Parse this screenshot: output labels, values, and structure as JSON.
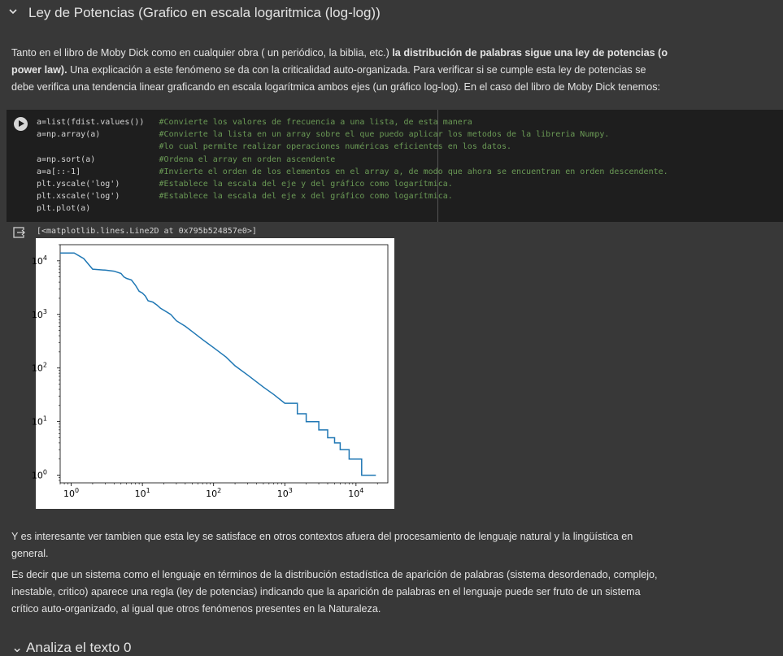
{
  "header": {
    "title": "Ley de Potencias (Grafico en escala logaritmica (log-log))",
    "chevron_icon": "chevron-down-icon"
  },
  "intro": {
    "part1": "Tanto en el libro de Moby Dick como en cualquier obra ( un periódico, la biblia, etc.) ",
    "bold": "la distribución de palabras sigue una ley de potencias (o power law).",
    "part2": " Una explicación a este fenómeno se da con la criticalidad auto-organizada. Para verificar si se cumple esta ley de potencias se debe verifica una tendencia linear graficando en escala logarítmica ambos ejes (un gráfico log-log). En el caso del libro de Moby Dick tenemos:"
  },
  "code_cell": {
    "run_icon": "play-icon",
    "lines": [
      {
        "code": "a=list(fdist.values())",
        "comment": "#Convierte los valores de frecuencia a una lista, de esta manera"
      },
      {
        "code": "a=np.array(a)",
        "comment": "#Convierte la lista en un array sobre el que puedo aplicar los metodos de la libreria Numpy."
      },
      {
        "code": "",
        "comment": "#lo cual permite realizar operaciones numéricas eficientes en los datos."
      },
      {
        "code": "a=np.sort(a)",
        "comment": "#Ordena el array en orden ascendente"
      },
      {
        "code": "a=a[::-1]",
        "comment": "#Invierte el orden de los elementos en el array a, de modo que ahora se encuentran en orden descendente."
      },
      {
        "code": "plt.yscale('log')",
        "comment": "#Establece la escala del eje y del gráfico como logarítmica."
      },
      {
        "code": "plt.xscale('log')",
        "comment": "#Establece la escala del eje x del gráfico como logarítmica."
      },
      {
        "code": "plt.plot(a)",
        "comment": ""
      }
    ]
  },
  "output": {
    "icon": "output-arrow-icon",
    "text": "[<matplotlib.lines.Line2D at 0x795b524857e0>]"
  },
  "chart_data": {
    "type": "line",
    "xscale": "log",
    "yscale": "log",
    "xlim": [
      0.7,
      28000
    ],
    "ylim": [
      0.72,
      20000
    ],
    "xticks": [
      {
        "base": "10",
        "exp": "0",
        "value": 1
      },
      {
        "base": "10",
        "exp": "1",
        "value": 10
      },
      {
        "base": "10",
        "exp": "2",
        "value": 100
      },
      {
        "base": "10",
        "exp": "3",
        "value": 1000
      },
      {
        "base": "10",
        "exp": "4",
        "value": 10000
      }
    ],
    "yticks": [
      {
        "base": "10",
        "exp": "0",
        "value": 1
      },
      {
        "base": "10",
        "exp": "1",
        "value": 10
      },
      {
        "base": "10",
        "exp": "2",
        "value": 100
      },
      {
        "base": "10",
        "exp": "3",
        "value": 1000
      },
      {
        "base": "10",
        "exp": "4",
        "value": 10000
      }
    ],
    "line_color": "#1f77b4",
    "x": [
      0.7,
      1.1,
      1.5,
      2,
      3,
      4,
      5,
      5.5,
      6,
      7,
      8,
      9,
      10,
      11,
      12,
      14,
      16,
      18,
      20,
      25,
      30,
      40,
      50,
      70,
      100,
      150,
      200,
      300,
      500,
      700,
      1000,
      1500,
      2000,
      3000,
      4000,
      5000,
      6000,
      7000,
      8000,
      10000,
      12000,
      19000
    ],
    "y": [
      14000,
      14000,
      11000,
      7000,
      6700,
      6400,
      5800,
      5000,
      4700,
      4400,
      3500,
      2700,
      2500,
      2200,
      1800,
      1700,
      1500,
      1300,
      1200,
      1000,
      760,
      600,
      480,
      340,
      240,
      160,
      110,
      74,
      44,
      32,
      22,
      14,
      10,
      7,
      5,
      4,
      3,
      3,
      2,
      2,
      1,
      1
    ]
  },
  "followup": {
    "p1": "Y es interesante ver tambien que esta ley se satisface en otros contextos afuera del procesamiento de lenguaje natural y la lingüística en general.",
    "p2": "Es decir que un sistema como el lenguaje en términos de la distribución estadística de aparición de palabras (sistema desordenado, complejo, inestable, critico) aparece una regla (ley de potencias) indicando que la aparición de palabras en el lenguaje puede ser fruto de un sistema crítico auto-organizado, al igual que otros fenómenos presentes en la Naturaleza."
  },
  "next_section": {
    "title": "Analiza el texto 0"
  }
}
